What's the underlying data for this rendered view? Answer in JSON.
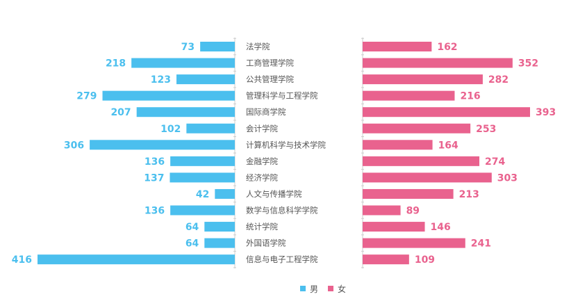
{
  "chart_data": {
    "type": "bar",
    "categories": [
      "法学院",
      "工商管理学院",
      "公共管理学院",
      "管理科学与工程学院",
      "国际商学院",
      "会计学院",
      "计算机科学与技术学院",
      "金融学院",
      "经济学院",
      "人文与传播学院",
      "数学与信息科学学院",
      "统计学院",
      "外国语学院",
      "信息与电子工程学院"
    ],
    "series": [
      {
        "name": "男",
        "color": "#4bbfee",
        "values": [
          73,
          218,
          123,
          279,
          207,
          102,
          306,
          136,
          137,
          42,
          136,
          64,
          64,
          416
        ]
      },
      {
        "name": "女",
        "color": "#e9628e",
        "values": [
          162,
          352,
          282,
          216,
          393,
          253,
          164,
          274,
          303,
          213,
          89,
          146,
          241,
          109
        ]
      }
    ],
    "legend_position": "bottom",
    "grid": false
  }
}
